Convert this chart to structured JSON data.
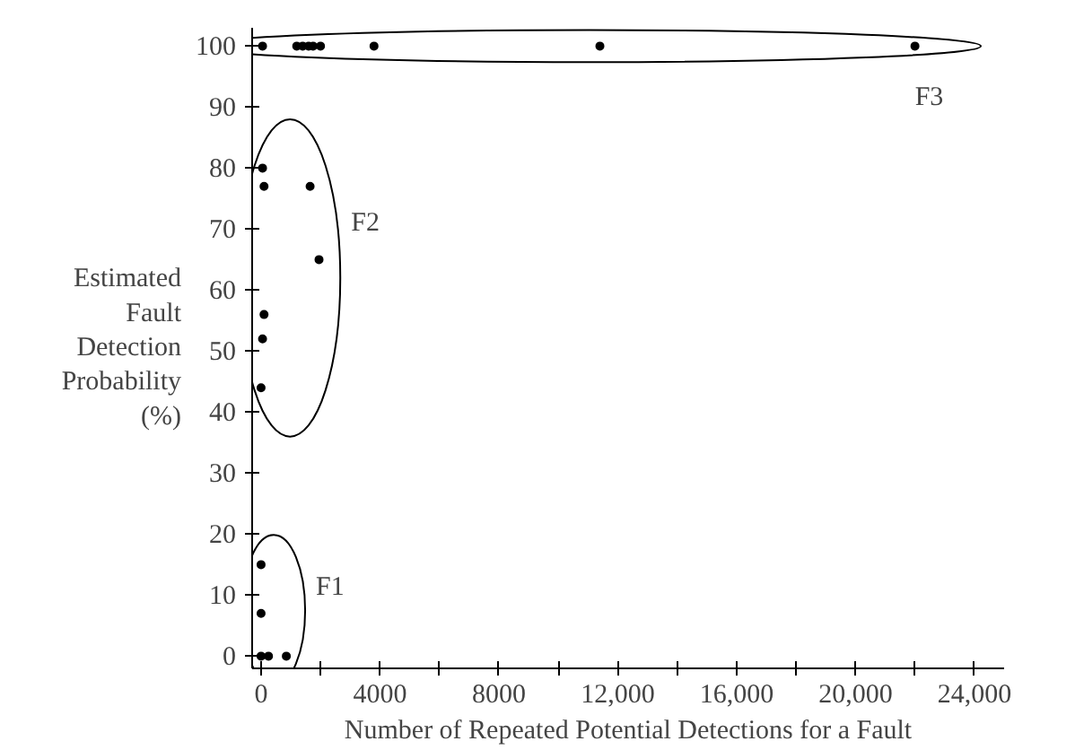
{
  "chart_data": {
    "type": "scatter",
    "xlabel": "Number of Repeated Potential Detections for a Fault",
    "ylabel": "Estimated Fault Detection Probability (%)",
    "xlim": [
      -300,
      25000
    ],
    "ylim": [
      -2,
      103
    ],
    "xticks": [
      0,
      {
        "value": 2000,
        "label": null
      },
      4000,
      {
        "value": 6000,
        "label": null
      },
      8000,
      {
        "value": 10000,
        "label": null
      },
      {
        "value": 12000,
        "label": "12,000"
      },
      {
        "value": 14000,
        "label": null
      },
      {
        "value": 16000,
        "label": "16,000"
      },
      {
        "value": 18000,
        "label": null
      },
      {
        "value": 20000,
        "label": "20,000"
      },
      {
        "value": 22000,
        "label": null
      },
      {
        "value": 24000,
        "label": "24,000"
      }
    ],
    "yticks": [
      0,
      10,
      20,
      30,
      40,
      50,
      60,
      70,
      80,
      90,
      100
    ],
    "marker": "circle",
    "grid": false,
    "series": [
      {
        "name": "F1",
        "color": "#000000",
        "x": [
          0,
          0,
          0,
          250,
          850
        ],
        "values": [
          15,
          7,
          0,
          0,
          0
        ]
      },
      {
        "name": "F2",
        "color": "#000000",
        "x": [
          50,
          100,
          1650,
          1950,
          100,
          50,
          0
        ],
        "values": [
          80,
          77,
          77,
          65,
          56,
          52,
          44
        ]
      },
      {
        "name": "F3",
        "color": "#000000",
        "x": [
          50,
          1200,
          1400,
          1600,
          1750,
          2000,
          3800,
          11400,
          22000
        ],
        "values": [
          100,
          100,
          100,
          100,
          100,
          100,
          100,
          100,
          100
        ]
      }
    ]
  }
}
